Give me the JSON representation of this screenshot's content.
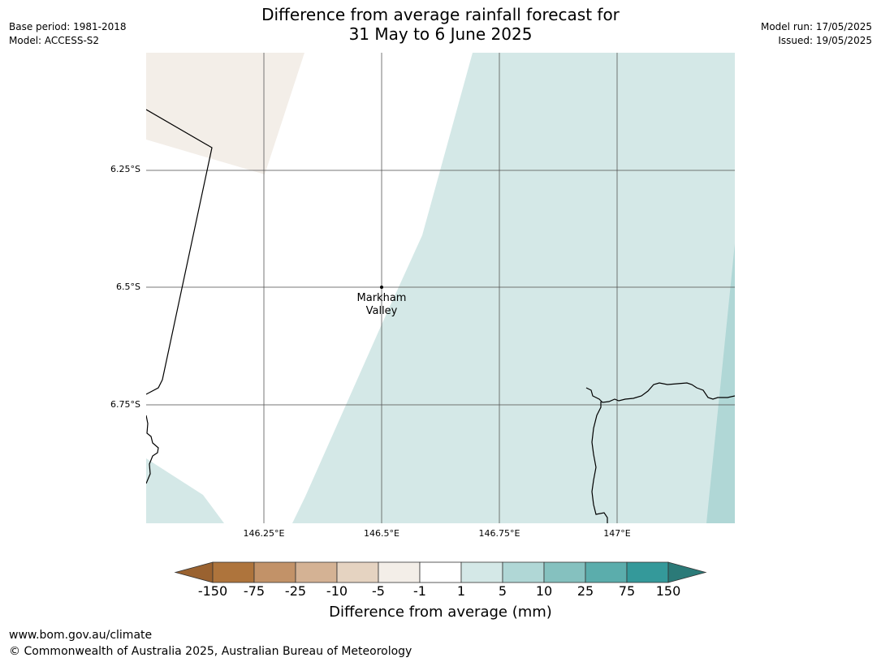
{
  "title_line1": "Difference from average rainfall forecast for",
  "title_line2": "31 May to 6 June 2025",
  "meta_left": [
    "Base period: 1981-2018",
    "Model: ACCESS-S2"
  ],
  "meta_right": [
    "Model run: 17/05/2025",
    "Issued: 19/05/2025"
  ],
  "map": {
    "lat_labels": [
      "6.25°S",
      "6.5°S",
      "6.75°S"
    ],
    "lon_labels": [
      "146.25°E",
      "146.5°E",
      "146.75°E",
      "147°E"
    ],
    "place": {
      "name_line1": "Markham",
      "name_line2": "Valley"
    },
    "colors": {
      "dry_light": "#f3eee8",
      "wet_light": "#d4e8e7",
      "wet_mid": "#b0d7d6",
      "gridline": "#555555",
      "coast": "#000000"
    }
  },
  "colorbar": {
    "ticks": [
      "-150",
      "-75",
      "-25",
      "-10",
      "-5",
      "-1",
      "1",
      "5",
      "10",
      "25",
      "75",
      "150"
    ],
    "colors": [
      "#9a6230",
      "#ae743c",
      "#c29268",
      "#d4b294",
      "#e5d3c1",
      "#f3eee8",
      "#ffffff",
      "#d4e8e7",
      "#b0d7d6",
      "#85c1bf",
      "#5badac",
      "#34999a",
      "#2b7a78"
    ],
    "label": "Difference from average (mm)"
  },
  "footer": {
    "url": "www.bom.gov.au/climate",
    "copyright": "© Commonwealth of Australia 2025, Australian Bureau of Meteorology"
  }
}
